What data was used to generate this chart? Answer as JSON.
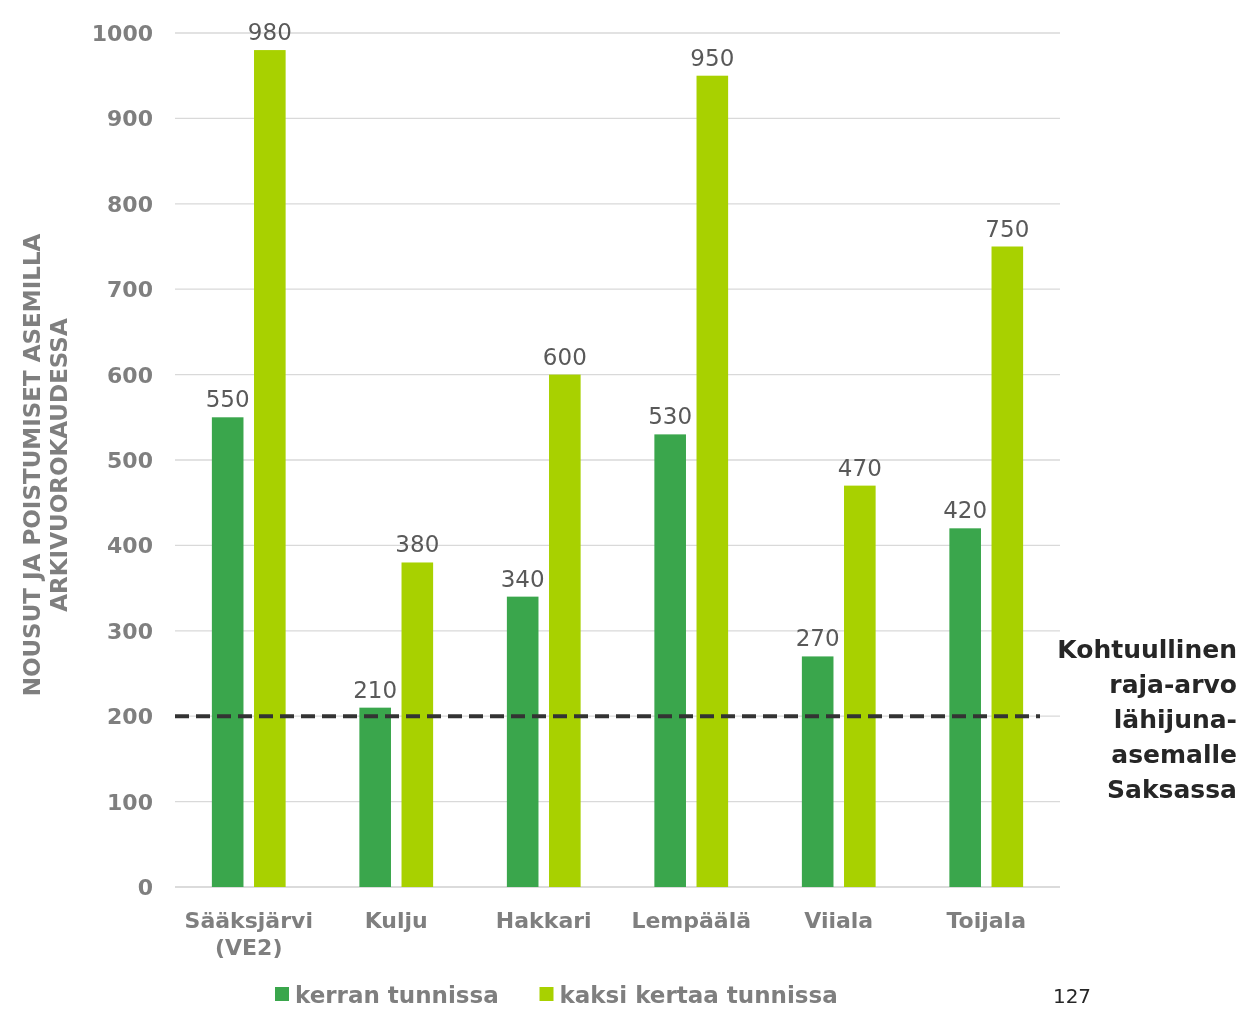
{
  "chart_data": {
    "type": "bar",
    "ylabel": "NOUSUT JA POISTUMISET ASEMILLA ARKIVUOROKAUDESSA",
    "categories": [
      "Sääksjärvi (VE2)",
      "Kulju",
      "Hakkari",
      "Lempäälä",
      "Viiala",
      "Toijala"
    ],
    "series": [
      {
        "name": "kerran tunnissa",
        "color": "#3aa64c",
        "values": [
          550,
          210,
          340,
          530,
          270,
          420
        ]
      },
      {
        "name": "kaksi kertaa tunnissa",
        "color": "#a8d100",
        "values": [
          980,
          380,
          600,
          950,
          470,
          750
        ]
      }
    ],
    "ylim": [
      0,
      1000
    ],
    "yticks": [
      0,
      100,
      200,
      300,
      400,
      500,
      600,
      700,
      800,
      900,
      1000
    ],
    "grid": "y",
    "legend": "bottom",
    "data_labels": true,
    "ref_lines": [
      {
        "axis": "y",
        "value": 200,
        "label": "Kohtuullinen raja-arvo lähijuna-asemalle Saksassa",
        "color": "#333333",
        "line_style": "dashed"
      }
    ],
    "annotations": [
      "127"
    ]
  }
}
